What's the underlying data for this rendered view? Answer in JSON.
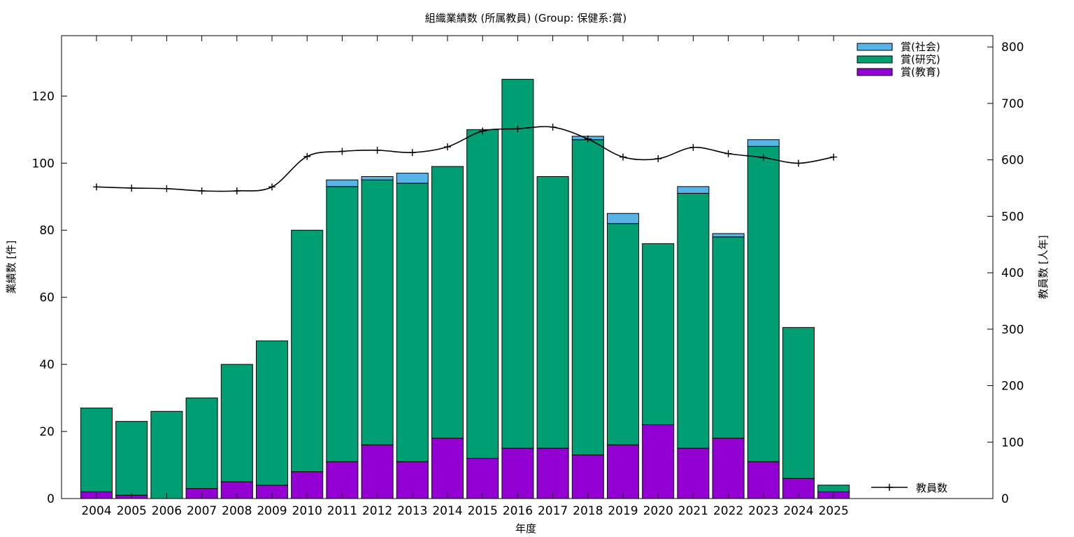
{
  "chart_data": {
    "type": "bar",
    "stacked": true,
    "title": "組織業績数 (所属教員) (Group: 保健系:賞)",
    "xlabel": "年度",
    "ylabel": "業績数 [件]",
    "y2label": "教員数 [人年]",
    "categories": [
      "2004",
      "2005",
      "2006",
      "2007",
      "2008",
      "2009",
      "2010",
      "2011",
      "2012",
      "2013",
      "2014",
      "2015",
      "2016",
      "2017",
      "2018",
      "2019",
      "2020",
      "2021",
      "2022",
      "2023",
      "2024",
      "2025"
    ],
    "ylim": [
      0,
      138
    ],
    "y2lim": [
      0,
      820
    ],
    "yticks": [
      0,
      20,
      40,
      60,
      80,
      100,
      120
    ],
    "y2ticks": [
      0,
      100,
      200,
      300,
      400,
      500,
      600,
      700,
      800
    ],
    "grid": false,
    "legend_position": "top-right",
    "series": [
      {
        "name": "賞(教育)",
        "color": "#9400d3",
        "values": [
          2,
          1,
          0,
          3,
          5,
          4,
          8,
          11,
          16,
          11,
          18,
          12,
          15,
          15,
          13,
          16,
          22,
          15,
          18,
          11,
          6,
          2
        ]
      },
      {
        "name": "賞(研究)",
        "color": "#009e73",
        "values": [
          25,
          22,
          26,
          27,
          35,
          43,
          72,
          82,
          79,
          83,
          81,
          98,
          110,
          81,
          94,
          66,
          54,
          76,
          60,
          94,
          45,
          2
        ]
      },
      {
        "name": "賞(社会)",
        "color": "#56b4e9",
        "values": [
          0,
          0,
          0,
          0,
          0,
          0,
          0,
          2,
          1,
          3,
          0,
          0,
          0,
          0,
          1,
          3,
          0,
          2,
          1,
          2,
          0,
          0
        ]
      }
    ],
    "line_series": {
      "name": "教員数",
      "axis": "y2",
      "color": "#000000",
      "values": [
        552,
        550,
        549,
        545,
        545,
        552,
        606,
        615,
        617,
        613,
        623,
        651,
        655,
        658,
        637,
        605,
        602,
        622,
        611,
        604,
        594,
        605
      ]
    }
  }
}
